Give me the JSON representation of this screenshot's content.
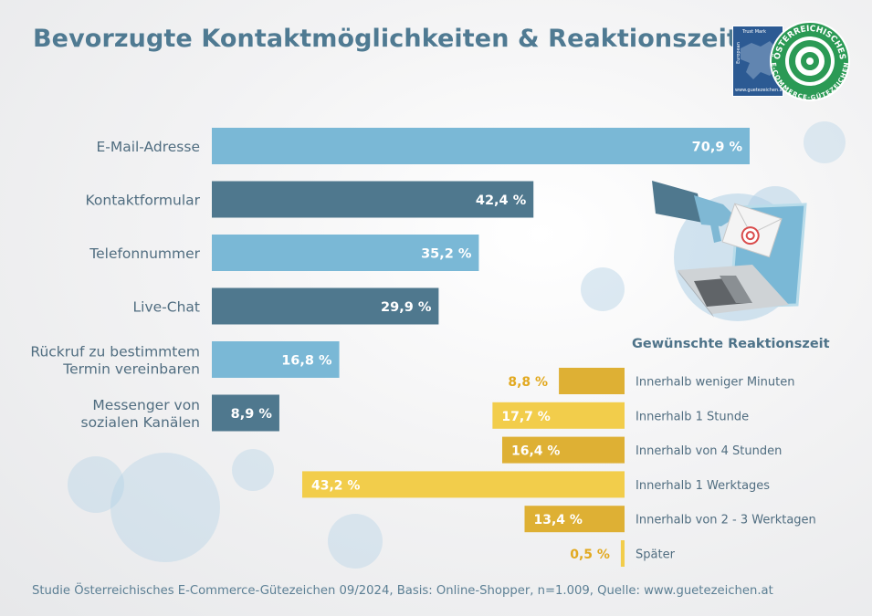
{
  "title": "Bevorzugte Kontaktmöglichkeiten & Reaktionszeit",
  "footer": "Studie Österreichisches E-Commerce-Gütezeichen 09/2024, Basis: Online-Shopper, n=1.009, Quelle: www.guetezeichen.at",
  "badge": {
    "eu_top": "Trust Mark",
    "eu_side": "European",
    "eu_url": "www.guetezeichen.at",
    "seal_top": "ÖSTERREICHISCHES",
    "seal_bottom": "E-COMMERCE-GÜTEZEICHEN"
  },
  "colors": {
    "title": "#4f7a92",
    "bar_light": "#7ab8d6",
    "bar_dark": "#4f788e",
    "yellow_light": "#f2cd4b",
    "yellow_dark": "#deb034",
    "category_label": "#506d80",
    "pct_yellow": "#e2a920"
  },
  "chart_data": [
    {
      "type": "bar",
      "orientation": "horizontal",
      "title": "",
      "categories": [
        "E-Mail-Adresse",
        "Kontaktformular",
        "Telefonnummer",
        "Live-Chat",
        "Rückruf zu bestimmtem Termin vereinbaren",
        "Messenger von sozialen Kanälen"
      ],
      "category_lines": [
        [
          "E-Mail-Adresse"
        ],
        [
          "Kontaktformular"
        ],
        [
          "Telefonnummer"
        ],
        [
          "Live-Chat"
        ],
        [
          "Rückruf zu bestimmtem",
          "Termin vereinbaren"
        ],
        [
          "Messenger von",
          "sozialen Kanälen"
        ]
      ],
      "values": [
        70.9,
        42.4,
        35.2,
        29.9,
        16.8,
        8.9
      ],
      "value_labels": [
        "70,9 %",
        "42,4 %",
        "35,2 %",
        "29,9 %",
        "16,8 %",
        "8,9 %"
      ],
      "shades": [
        "light",
        "dark",
        "light",
        "dark",
        "light",
        "dark"
      ],
      "unit": "%",
      "grid": false
    },
    {
      "type": "bar",
      "orientation": "horizontal",
      "title": "Gewünschte Reaktionszeit",
      "categories": [
        "Innerhalb weniger Minuten",
        "Innerhalb 1 Stunde",
        "Innerhalb von 4 Stunden",
        "Innerhalb 1 Werktages",
        "Innerhalb von 2 - 3 Werktagen",
        "Später"
      ],
      "values": [
        8.8,
        17.7,
        16.4,
        43.2,
        13.4,
        0.5
      ],
      "value_labels": [
        "8,8 %",
        "17,7 %",
        "16,4 %",
        "43,2 %",
        "13,4 %",
        "0,5 %"
      ],
      "shades": [
        "dark",
        "light",
        "dark",
        "light",
        "dark",
        "light"
      ],
      "label_inside": [
        false,
        true,
        true,
        true,
        true,
        false
      ],
      "direction": "leftward",
      "unit": "%",
      "grid": false
    }
  ]
}
